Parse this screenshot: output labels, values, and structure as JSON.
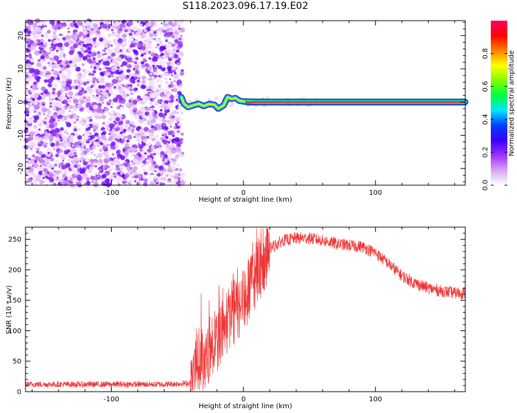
{
  "title": "S118.2023.096.17.19.E02",
  "chart_data": [
    {
      "type": "heatmap",
      "xlabel": "Height of straight line (km)",
      "ylabel": "Frequency (Hz)",
      "xlim": [
        -165,
        168
      ],
      "ylim": [
        -25,
        24.5
      ],
      "x_ticks": [
        -100,
        0,
        100
      ],
      "y_ticks": [
        -20,
        -10,
        0,
        10,
        20
      ],
      "noise_region_x": [
        -165,
        -48
      ],
      "signal_track": [
        {
          "x": -47,
          "y": 1.5
        },
        {
          "x": -45,
          "y": -0.5
        },
        {
          "x": -42,
          "y": -1.5
        },
        {
          "x": -38,
          "y": -1.0
        },
        {
          "x": -34,
          "y": -0.5
        },
        {
          "x": -30,
          "y": -1.2
        },
        {
          "x": -26,
          "y": -0.6
        },
        {
          "x": -22,
          "y": -0.8
        },
        {
          "x": -19,
          "y": -2.0
        },
        {
          "x": -15,
          "y": -1.0
        },
        {
          "x": -12,
          "y": 1.5
        },
        {
          "x": -9,
          "y": 1.0
        },
        {
          "x": -6,
          "y": 1.2
        },
        {
          "x": -3,
          "y": 0.4
        },
        {
          "x": 0,
          "y": 0.2
        },
        {
          "x": 10,
          "y": 0.0
        },
        {
          "x": 50,
          "y": 0.0
        },
        {
          "x": 100,
          "y": 0.0
        },
        {
          "x": 168,
          "y": 0.0
        }
      ]
    },
    {
      "type": "colorbar",
      "label": "Normalized spectral amplitude",
      "range": [
        0,
        1
      ],
      "ticks": [
        "0.0",
        "0.2",
        "0.4",
        "0.6",
        "0.8"
      ],
      "colors": [
        "#ffffff",
        "#d9a3f5",
        "#9b30ff",
        "#3a00ff",
        "#0040ff",
        "#00e5ff",
        "#00ff40",
        "#7fff00",
        "#ffff00",
        "#ff8000",
        "#ff0000",
        "#ff0066"
      ]
    },
    {
      "type": "line",
      "xlabel": "Height of straight line (km)",
      "ylabel": "SNR (10 * v/v)",
      "xlim": [
        -165,
        168
      ],
      "ylim": [
        0,
        270
      ],
      "x_ticks": [
        -100,
        0,
        100
      ],
      "y_ticks": [
        0,
        50,
        100,
        150,
        200,
        250
      ],
      "series": [
        {
          "color": "#ee3333",
          "envelope": [
            {
              "x": -165,
              "y": 12
            },
            {
              "x": -60,
              "y": 12
            },
            {
              "x": -40,
              "y": 14
            },
            {
              "x": -35,
              "y": 60
            },
            {
              "x": -30,
              "y": 60
            },
            {
              "x": -25,
              "y": 80
            },
            {
              "x": -20,
              "y": 90
            },
            {
              "x": -15,
              "y": 110
            },
            {
              "x": -10,
              "y": 130
            },
            {
              "x": -5,
              "y": 140
            },
            {
              "x": 0,
              "y": 150
            },
            {
              "x": 5,
              "y": 175
            },
            {
              "x": 10,
              "y": 200
            },
            {
              "x": 15,
              "y": 220
            },
            {
              "x": 20,
              "y": 235
            },
            {
              "x": 30,
              "y": 248
            },
            {
              "x": 40,
              "y": 252
            },
            {
              "x": 50,
              "y": 252
            },
            {
              "x": 60,
              "y": 248
            },
            {
              "x": 70,
              "y": 243
            },
            {
              "x": 80,
              "y": 240
            },
            {
              "x": 90,
              "y": 238
            },
            {
              "x": 100,
              "y": 228
            },
            {
              "x": 110,
              "y": 210
            },
            {
              "x": 120,
              "y": 190
            },
            {
              "x": 130,
              "y": 178
            },
            {
              "x": 140,
              "y": 170
            },
            {
              "x": 150,
              "y": 165
            },
            {
              "x": 160,
              "y": 162
            },
            {
              "x": 168,
              "y": 162
            }
          ]
        }
      ]
    }
  ]
}
